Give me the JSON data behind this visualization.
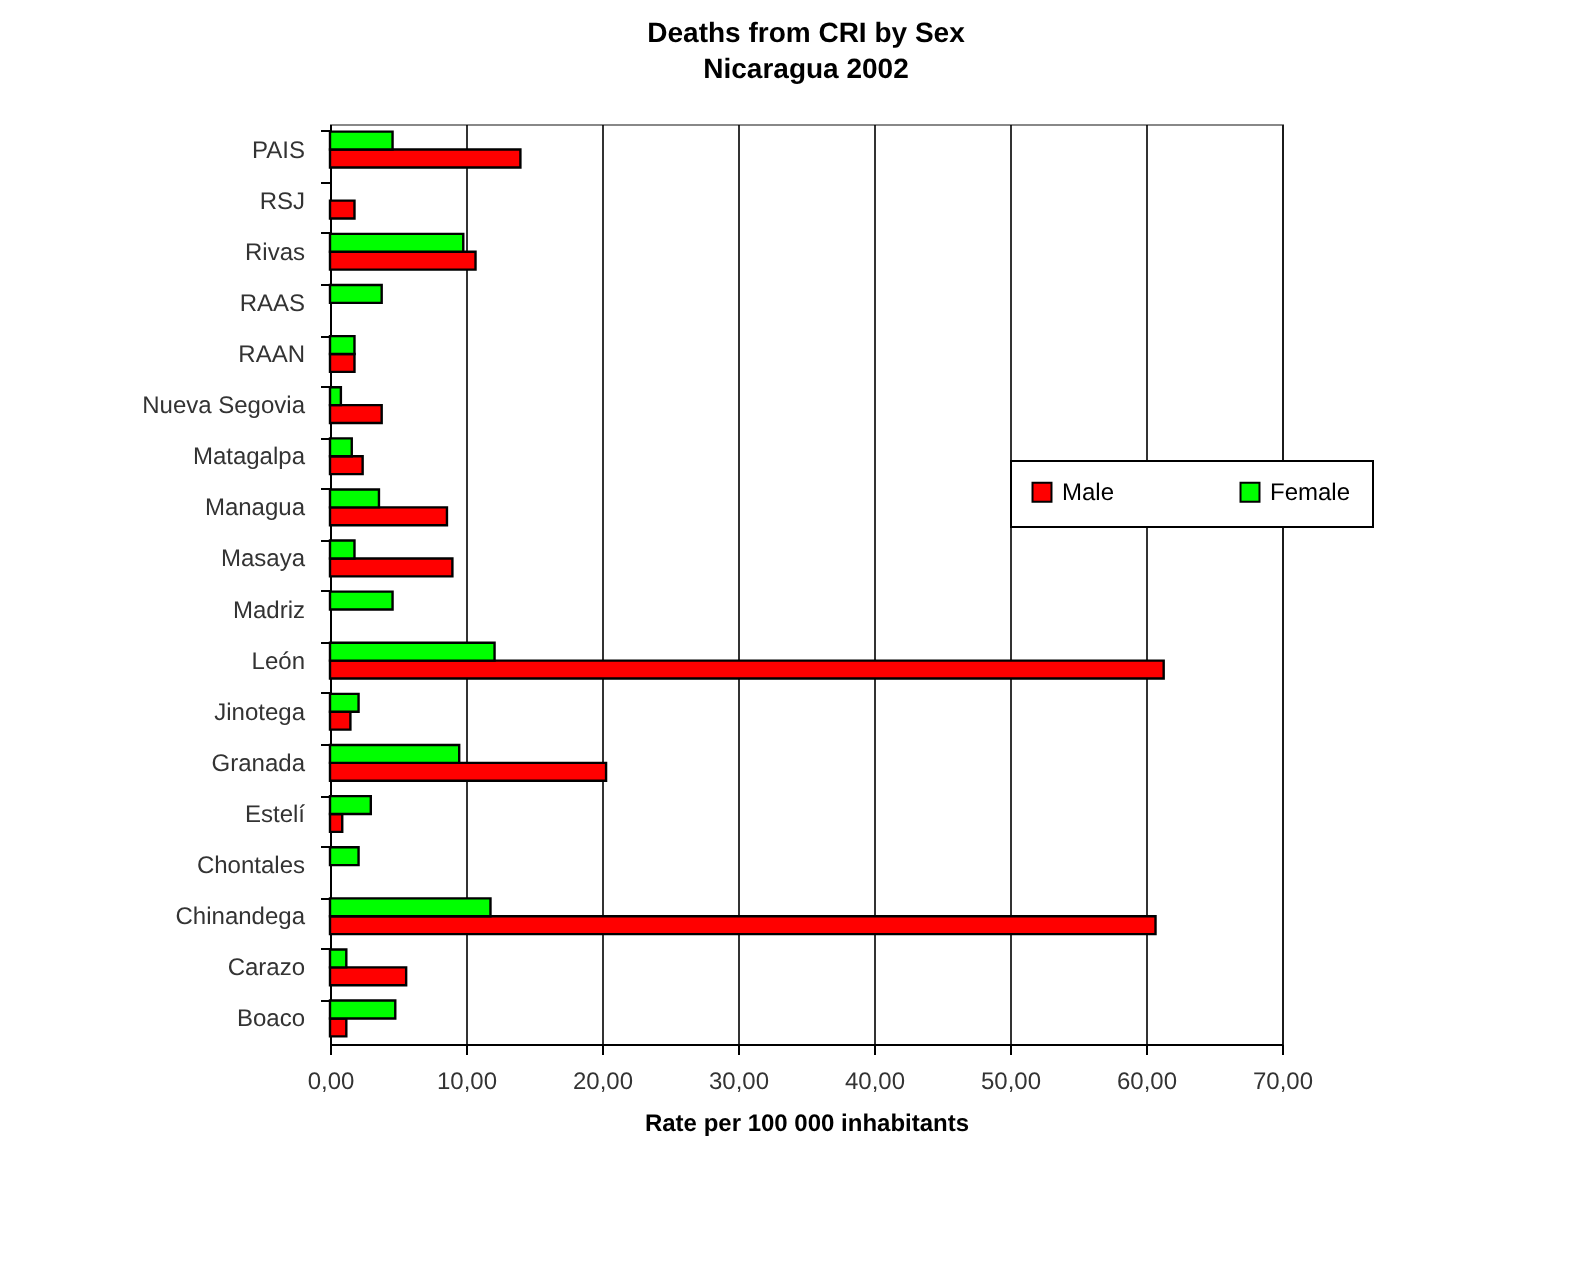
{
  "chart_data": {
    "type": "bar",
    "orientation": "horizontal",
    "title": "Deaths from CRI by Sex",
    "subtitle": "Nicaragua 2002",
    "xlabel": "Rate per 100 000 inhabitants",
    "categories": [
      "PAIS",
      "RSJ",
      "Rivas",
      "RAAS",
      "RAAN",
      "Nueva Segovia",
      "Matagalpa",
      "Managua",
      "Masaya",
      "Madriz",
      "León",
      "Jinotega",
      "Granada",
      "Estelí",
      "Chontales",
      "Chinandega",
      "Carazo",
      "Boaco"
    ],
    "series": [
      {
        "name": "Male",
        "color": "#ff0000",
        "values": [
          14.0,
          1.8,
          10.7,
          null,
          1.8,
          3.8,
          2.4,
          8.6,
          9.0,
          null,
          61.3,
          1.5,
          20.3,
          0.9,
          null,
          60.7,
          5.6,
          1.2
        ]
      },
      {
        "name": "Female",
        "color": "#00ff00",
        "values": [
          4.6,
          null,
          9.8,
          3.8,
          1.8,
          0.8,
          1.6,
          3.6,
          1.8,
          4.6,
          12.1,
          2.1,
          9.5,
          3.0,
          2.1,
          11.8,
          1.2,
          4.8
        ]
      }
    ],
    "xlim": [
      0,
      70
    ],
    "xticks": [
      {
        "value": 0,
        "label": "0,00"
      },
      {
        "value": 10,
        "label": "10,00"
      },
      {
        "value": 20,
        "label": "20,00"
      },
      {
        "value": 30,
        "label": "30,00"
      },
      {
        "value": 40,
        "label": "40,00"
      },
      {
        "value": 50,
        "label": "50,00"
      },
      {
        "value": 60,
        "label": "60,00"
      },
      {
        "value": 70,
        "label": "70,00"
      }
    ],
    "grid": "x",
    "legend": "right"
  }
}
